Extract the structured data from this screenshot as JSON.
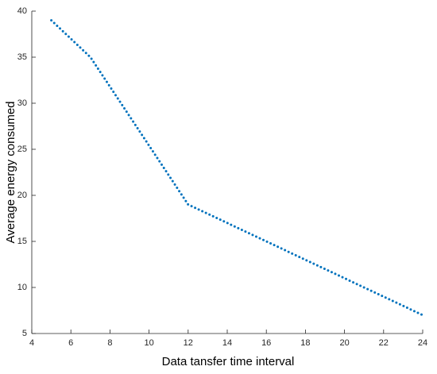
{
  "chart_data": {
    "type": "line",
    "x_label": "Data tansfer time interval",
    "y_label": "Average energy consumed",
    "series": [
      {
        "color": "#0072bd",
        "x": [
          5,
          7,
          12,
          24
        ],
        "values": [
          39,
          35,
          19,
          7
        ]
      }
    ],
    "xlim": [
      4,
      24
    ],
    "xticks": [
      4,
      6,
      8,
      10,
      12,
      14,
      16,
      18,
      20,
      22,
      24
    ],
    "ylim": [
      5,
      40
    ],
    "yticks": [
      5,
      10,
      15,
      20,
      25,
      30,
      35,
      40
    ]
  }
}
